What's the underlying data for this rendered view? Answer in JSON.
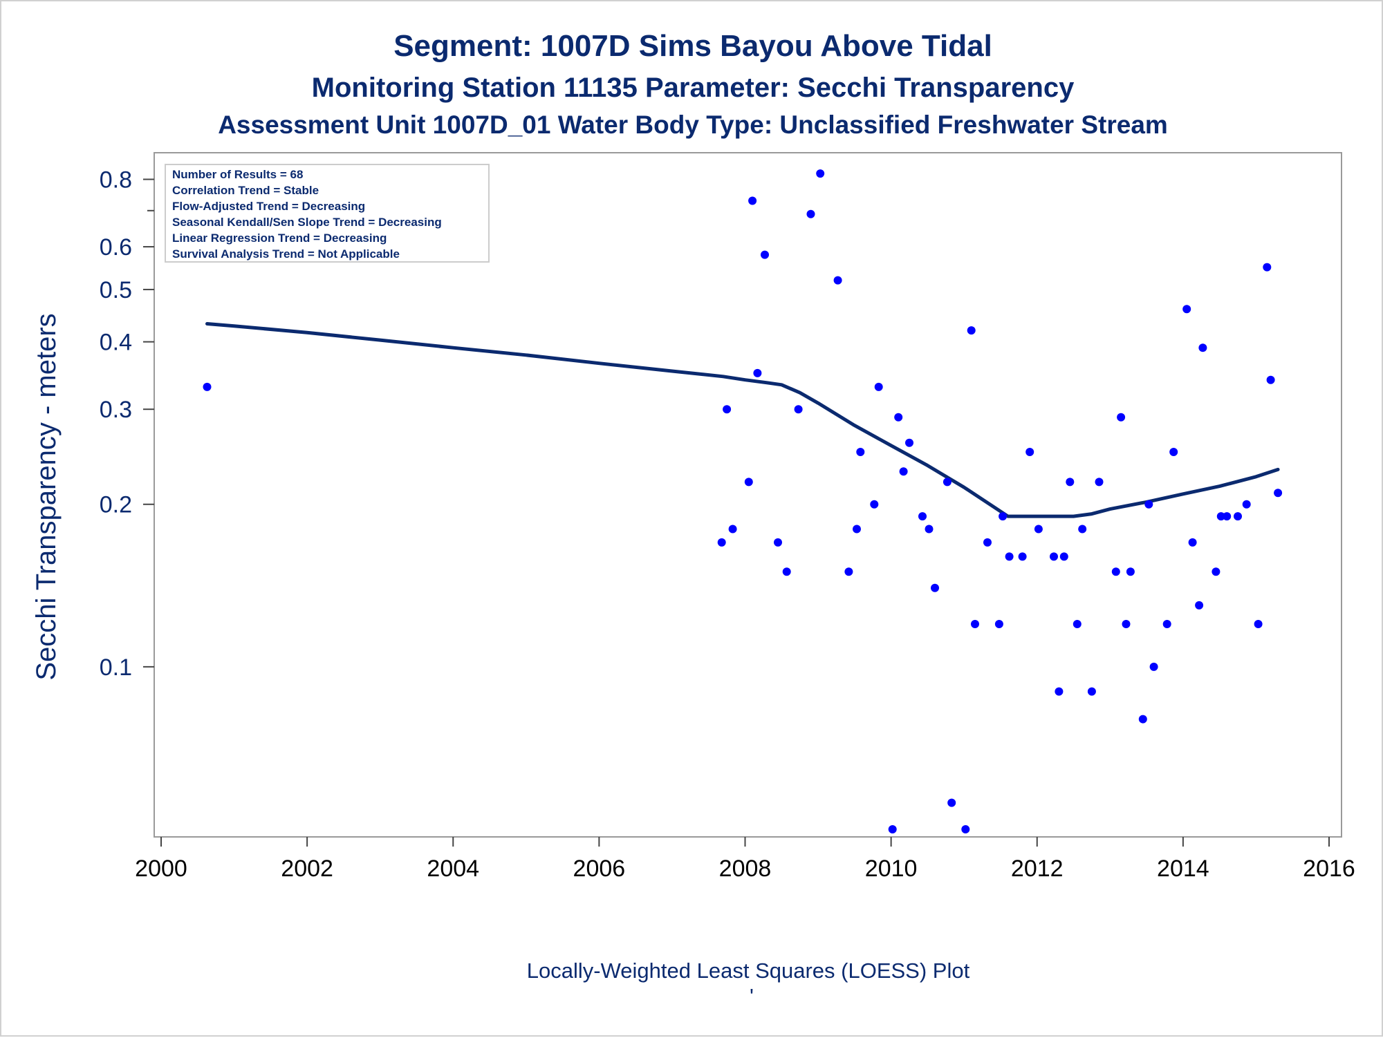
{
  "titles": {
    "line1": "Segment: 1007D  Sims Bayou Above Tidal",
    "line2": "Monitoring Station 11135 Parameter: Secchi Transparency",
    "line3": "Assessment Unit 1007D_01   Water Body Type: Unclassified Freshwater Stream"
  },
  "stats": [
    "Number of Results = 68",
    "Correlation Trend = Stable",
    "Flow-Adjusted Trend = Decreasing",
    "Seasonal Kendall/Sen Slope Trend = Decreasing",
    "Linear Regression Trend = Decreasing",
    "Survival Analysis Trend = Not Applicable"
  ],
  "footnote": "Locally-Weighted Least Squares (LOESS) Plot",
  "footnote_mark": "'",
  "colors": {
    "text": "#0b2a6f",
    "points": "#0000ff",
    "line": "#0b2a6f",
    "frame": "#999999"
  },
  "chart_data": {
    "type": "scatter",
    "title": "Segment: 1007D  Sims Bayou Above Tidal",
    "xlabel": "",
    "ylabel": "Secchi Transparency - meters",
    "xlim": [
      2000,
      2016
    ],
    "ylim": [
      0.05,
      0.83
    ],
    "yscale": "log",
    "xticks": [
      2000,
      2002,
      2004,
      2006,
      2008,
      2010,
      2012,
      2014,
      2016
    ],
    "yticks": [
      0.1,
      0.2,
      0.3,
      0.4,
      0.5,
      0.6,
      0.8
    ],
    "ytick_labels": [
      "0.1",
      "0.2",
      "0.3",
      "0.4",
      "0.5",
      "0.6",
      "0.8"
    ],
    "grid": false,
    "series": [
      {
        "kind": "points",
        "x": [
          2000.63,
          2007.68,
          2007.75,
          2007.83,
          2008.05,
          2008.1,
          2008.17,
          2008.27,
          2008.45,
          2008.57,
          2008.73,
          2008.9,
          2009.03,
          2009.27,
          2009.42,
          2009.53,
          2009.58,
          2009.77,
          2009.83,
          2010.02,
          2010.1,
          2010.17,
          2010.25,
          2010.43,
          2010.52,
          2010.6,
          2010.77,
          2010.83,
          2011.02,
          2011.1,
          2011.15,
          2011.32,
          2011.48,
          2011.53,
          2011.62,
          2011.8,
          2011.9,
          2012.02,
          2012.23,
          2012.3,
          2012.37,
          2012.45,
          2012.55,
          2012.62,
          2012.75,
          2012.85,
          2013.08,
          2013.15,
          2013.22,
          2013.28,
          2013.45,
          2013.53,
          2013.6,
          2013.78,
          2013.87,
          2014.05,
          2014.13,
          2014.22,
          2014.27,
          2014.45,
          2014.52,
          2014.6,
          2014.75,
          2014.87,
          2015.03,
          2015.15,
          2015.2,
          2015.3
        ],
        "y": [
          0.33,
          0.17,
          0.3,
          0.18,
          0.22,
          0.73,
          0.35,
          0.58,
          0.17,
          0.15,
          0.3,
          0.69,
          0.82,
          0.52,
          0.15,
          0.18,
          0.25,
          0.2,
          0.33,
          0.05,
          0.29,
          0.23,
          0.26,
          0.19,
          0.18,
          0.14,
          0.22,
          0.056,
          0.05,
          0.42,
          0.12,
          0.17,
          0.12,
          0.19,
          0.16,
          0.16,
          0.25,
          0.18,
          0.16,
          0.09,
          0.16,
          0.22,
          0.12,
          0.18,
          0.09,
          0.22,
          0.15,
          0.29,
          0.12,
          0.15,
          0.08,
          0.2,
          0.1,
          0.12,
          0.25,
          0.46,
          0.17,
          0.13,
          0.39,
          0.15,
          0.19,
          0.19,
          0.19,
          0.2,
          0.12,
          0.55,
          0.34,
          0.21
        ]
      },
      {
        "kind": "loess",
        "x": [
          2000.63,
          2001,
          2002,
          2003,
          2004,
          2005,
          2006,
          2007,
          2007.7,
          2008,
          2008.3,
          2008.5,
          2008.75,
          2009,
          2009.5,
          2010,
          2010.5,
          2011,
          2011.5,
          2011.6,
          2012,
          2012.5,
          2012.75,
          2013,
          2013.5,
          2014,
          2014.5,
          2015,
          2015.3
        ],
        "y": [
          0.432,
          0.428,
          0.416,
          0.403,
          0.39,
          0.378,
          0.365,
          0.353,
          0.345,
          0.34,
          0.336,
          0.333,
          0.322,
          0.308,
          0.28,
          0.257,
          0.236,
          0.215,
          0.194,
          0.19,
          0.19,
          0.19,
          0.192,
          0.196,
          0.202,
          0.209,
          0.216,
          0.225,
          0.232
        ]
      }
    ]
  }
}
